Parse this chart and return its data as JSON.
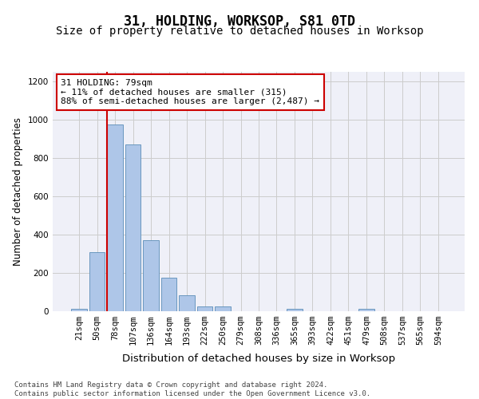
{
  "title": "31, HOLDING, WORKSOP, S81 0TD",
  "subtitle": "Size of property relative to detached houses in Worksop",
  "xlabel": "Distribution of detached houses by size in Worksop",
  "ylabel": "Number of detached properties",
  "categories": [
    "21sqm",
    "50sqm",
    "78sqm",
    "107sqm",
    "136sqm",
    "164sqm",
    "193sqm",
    "222sqm",
    "250sqm",
    "279sqm",
    "308sqm",
    "336sqm",
    "365sqm",
    "393sqm",
    "422sqm",
    "451sqm",
    "479sqm",
    "508sqm",
    "537sqm",
    "565sqm",
    "594sqm"
  ],
  "values": [
    12,
    310,
    975,
    870,
    370,
    175,
    85,
    25,
    25,
    0,
    0,
    0,
    12,
    0,
    0,
    0,
    12,
    0,
    0,
    0,
    0
  ],
  "bar_color": "#aec6e8",
  "bar_edge_color": "#5b8db8",
  "highlight_index": 2,
  "highlight_line_color": "#cc0000",
  "annotation_text": "31 HOLDING: 79sqm\n← 11% of detached houses are smaller (315)\n88% of semi-detached houses are larger (2,487) →",
  "annotation_box_facecolor": "#ffffff",
  "annotation_box_edgecolor": "#cc0000",
  "ylim": [
    0,
    1250
  ],
  "yticks": [
    0,
    200,
    400,
    600,
    800,
    1000,
    1200
  ],
  "grid_color": "#cccccc",
  "background_color": "#eff0f8",
  "footer_text": "Contains HM Land Registry data © Crown copyright and database right 2024.\nContains public sector information licensed under the Open Government Licence v3.0.",
  "title_fontsize": 12,
  "subtitle_fontsize": 10,
  "xlabel_fontsize": 9.5,
  "ylabel_fontsize": 8.5,
  "tick_fontsize": 7.5,
  "annotation_fontsize": 8,
  "footer_fontsize": 6.5,
  "bar_width": 0.85
}
